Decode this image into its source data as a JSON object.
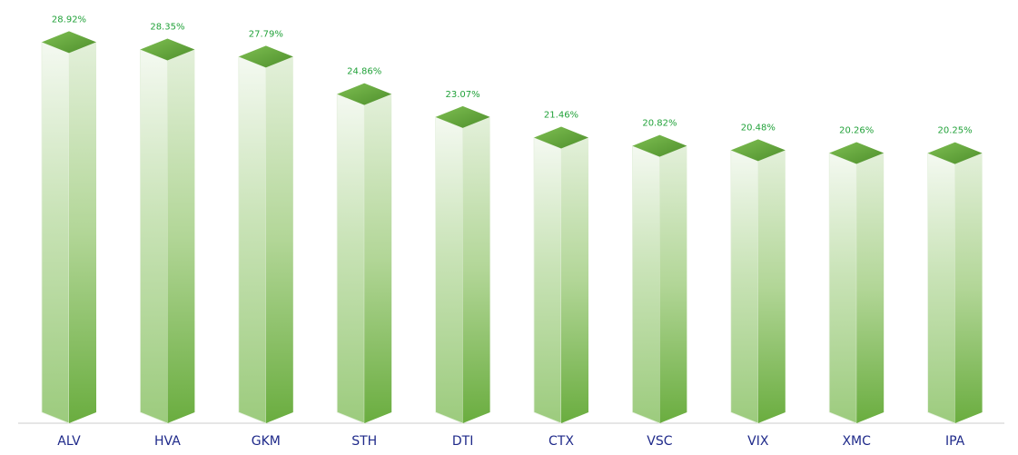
{
  "chart_data": {
    "type": "bar",
    "style": "3d-prism",
    "categories": [
      "ALV",
      "HVA",
      "GKM",
      "STH",
      "DTI",
      "CTX",
      "VSC",
      "VIX",
      "XMC",
      "IPA"
    ],
    "values": [
      28.92,
      28.35,
      27.79,
      24.86,
      23.07,
      21.46,
      20.82,
      20.48,
      20.26,
      20.25
    ],
    "value_labels": [
      "28.92%",
      "28.35%",
      "27.79%",
      "24.86%",
      "23.07%",
      "21.46%",
      "20.82%",
      "20.48%",
      "20.26%",
      "20.25%"
    ],
    "title": "",
    "xlabel": "",
    "ylabel": "",
    "ylim": [
      0,
      32
    ],
    "grid": false,
    "legend": "none"
  },
  "colors": {
    "bar_dark": "#6aad3f",
    "bar_light": "#f4f9f1",
    "top": "#5a9e35",
    "value_label": "#22a23a",
    "category_label": "#1f2a8a",
    "baseline": "#cccccc"
  }
}
